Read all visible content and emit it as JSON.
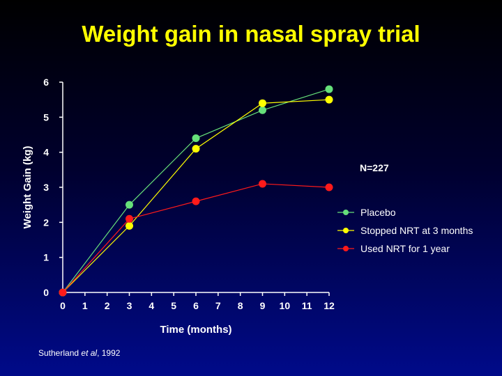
{
  "slide": {
    "title": "Weight gain in nasal spray trial",
    "annotation": "N=227",
    "credit": {
      "author": "Sutherland ",
      "etal": "et al",
      "year": ", 1992"
    }
  },
  "chart_data": {
    "type": "line",
    "title": "Weight gain in nasal spray trial",
    "xlabel": "Time (months)",
    "ylabel": "Weight Gain (kg)",
    "xlim": [
      0,
      12
    ],
    "ylim": [
      0,
      6
    ],
    "xticks": [
      "0",
      "1",
      "2",
      "3",
      "4",
      "5",
      "6",
      "7",
      "8",
      "9",
      "10",
      "11",
      "12"
    ],
    "yticks": [
      "0",
      "1",
      "2",
      "3",
      "4",
      "5",
      "6"
    ],
    "grid": false,
    "legend_position": "right",
    "series": [
      {
        "name": "Placebo",
        "color": "#66e07a",
        "points": [
          [
            0,
            0
          ],
          [
            3,
            2.5
          ],
          [
            6,
            4.4
          ],
          [
            9,
            5.2
          ],
          [
            12,
            5.8
          ]
        ]
      },
      {
        "name": "Stopped NRT at 3 months",
        "color": "#ffff00",
        "points": [
          [
            0,
            0
          ],
          [
            3,
            1.9
          ],
          [
            6,
            4.1
          ],
          [
            9,
            5.4
          ],
          [
            12,
            5.5
          ]
        ]
      },
      {
        "name": "Used NRT for 1 year",
        "color": "#ff1a1a",
        "points": [
          [
            0,
            0
          ],
          [
            3,
            2.1
          ],
          [
            6,
            2.6
          ],
          [
            9,
            3.1
          ],
          [
            12,
            3.0
          ]
        ]
      }
    ]
  }
}
